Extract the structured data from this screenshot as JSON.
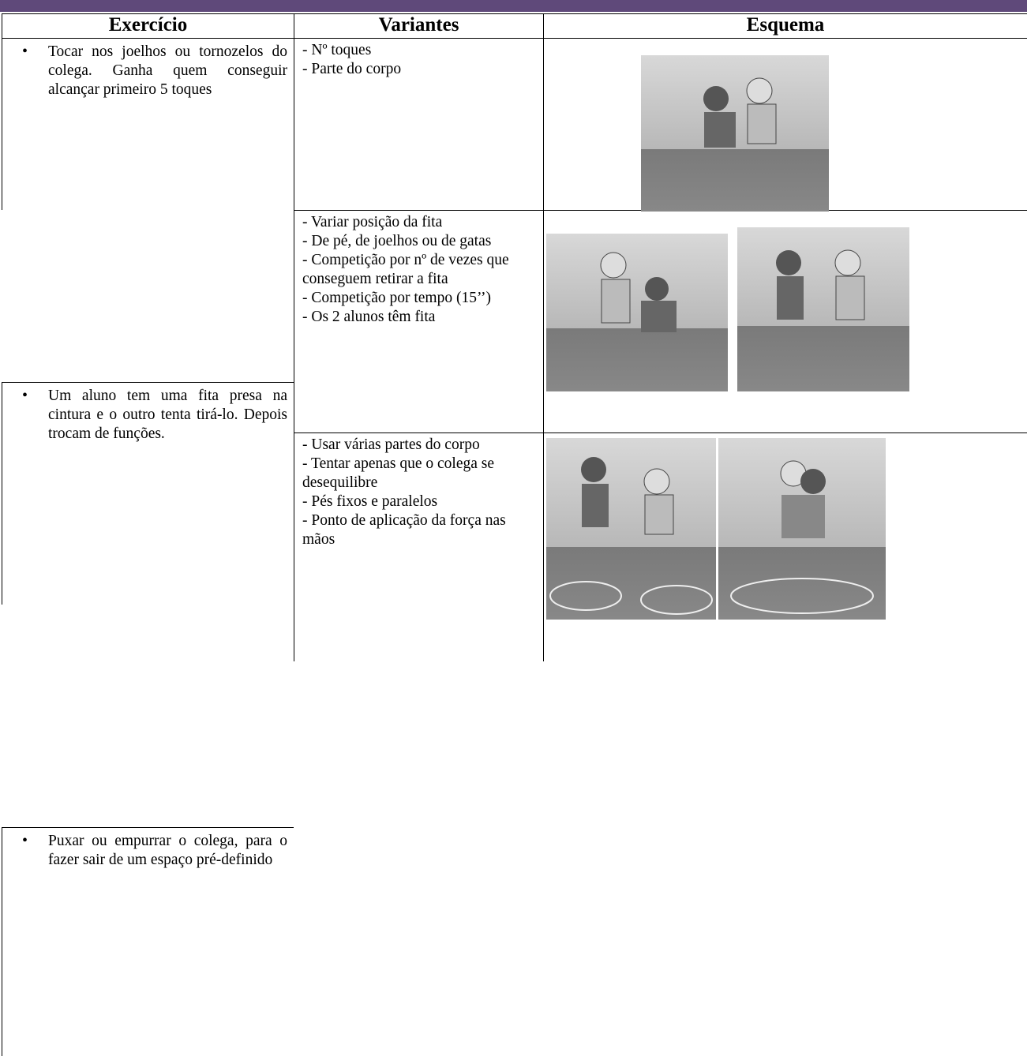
{
  "table": {
    "header": [
      "Exercício",
      "Variantes",
      "Esquema"
    ],
    "rows": [
      {
        "exercise": "Tocar nos joelhos ou tornozelos do colega. Ganha quem conseguir alcançar primeiro 5 toques",
        "variants": [
          "- Nº toques",
          "- Parte do corpo"
        ]
      },
      {
        "exercise": "Um aluno tem uma fita presa na cintura e o outro tenta tirá-lo. Depois trocam de funções.",
        "variants": [
          "- Variar posição da fita",
          "- De pé, de joelhos ou de gatas",
          "- Competição por nº de vezes que conseguem retirar a fita",
          "- Competição por tempo (15’’)",
          "- Os 2 alunos têm fita"
        ]
      },
      {
        "exercise": "Puxar ou empurrar o colega, para o fazer sair de um espaço pré-definido",
        "variants": [
          "- Usar várias partes do corpo",
          "- Tentar apenas que o colega se desequilibre",
          "- Pés fixos e paralelos",
          "- Ponto de aplicação da força nas mãos"
        ]
      }
    ]
  }
}
